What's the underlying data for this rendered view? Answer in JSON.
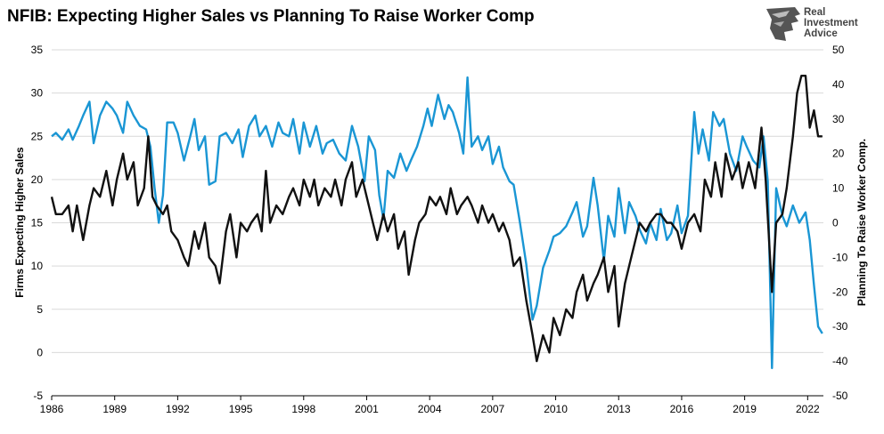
{
  "title": "NFIB: Expecting Higher Sales vs Planning To Raise Worker Comp",
  "logo": {
    "icon": "eagle-head-icon",
    "lines": [
      "Real",
      "Investment",
      "Advice"
    ]
  },
  "chart_data": {
    "type": "line",
    "title": "NFIB: Expecting Higher Sales vs Planning To Raise Worker Comp",
    "xlabel": "",
    "ylabel": "Firms Expecting Higher Sales",
    "y2label": "Planning To Raise Worker Comp.",
    "xlim": [
      1986,
      2022.75
    ],
    "ylim": [
      -5,
      35
    ],
    "y2lim": [
      -50,
      50
    ],
    "x_ticks": [
      "1986",
      "1989",
      "1992",
      "1995",
      "1998",
      "2001",
      "2004",
      "2007",
      "2010",
      "2013",
      "2016",
      "2019",
      "2022"
    ],
    "y_ticks": [
      "35",
      "30",
      "25",
      "20",
      "15",
      "10",
      "5",
      "0",
      "-5"
    ],
    "y2_ticks": [
      "50",
      "40",
      "30",
      "20",
      "10",
      "0",
      "-10",
      "-20",
      "-30",
      "-40",
      "-50"
    ],
    "grid": "horizontal",
    "series": [
      {
        "color": "#111111",
        "axis": "left",
        "points": [
          [
            1986.0,
            18
          ],
          [
            1986.2,
            16
          ],
          [
            1986.5,
            16
          ],
          [
            1986.8,
            17
          ],
          [
            1987.0,
            14
          ],
          [
            1987.2,
            17
          ],
          [
            1987.5,
            13
          ],
          [
            1987.8,
            17
          ],
          [
            1988.0,
            19
          ],
          [
            1988.3,
            18
          ],
          [
            1988.6,
            21
          ],
          [
            1988.9,
            17
          ],
          [
            1989.1,
            20
          ],
          [
            1989.4,
            23
          ],
          [
            1989.6,
            20
          ],
          [
            1989.9,
            22
          ],
          [
            1990.1,
            17
          ],
          [
            1990.4,
            19
          ],
          [
            1990.6,
            25
          ],
          [
            1990.8,
            18
          ],
          [
            1991.0,
            17
          ],
          [
            1991.3,
            16
          ],
          [
            1991.5,
            17
          ],
          [
            1991.7,
            14
          ],
          [
            1992.0,
            13
          ],
          [
            1992.3,
            11
          ],
          [
            1992.5,
            10
          ],
          [
            1992.8,
            14
          ],
          [
            1993.0,
            12
          ],
          [
            1993.3,
            15
          ],
          [
            1993.5,
            11
          ],
          [
            1993.8,
            10
          ],
          [
            1994.0,
            8
          ],
          [
            1994.3,
            14
          ],
          [
            1994.5,
            16
          ],
          [
            1994.8,
            11
          ],
          [
            1995.0,
            15
          ],
          [
            1995.3,
            14
          ],
          [
            1995.5,
            15
          ],
          [
            1995.8,
            16
          ],
          [
            1996.0,
            14
          ],
          [
            1996.2,
            21
          ],
          [
            1996.4,
            15
          ],
          [
            1996.7,
            17
          ],
          [
            1997.0,
            16
          ],
          [
            1997.3,
            18
          ],
          [
            1997.5,
            19
          ],
          [
            1997.8,
            17
          ],
          [
            1998.0,
            20
          ],
          [
            1998.3,
            18
          ],
          [
            1998.5,
            20
          ],
          [
            1998.7,
            17
          ],
          [
            1999.0,
            19
          ],
          [
            1999.3,
            18
          ],
          [
            1999.5,
            20
          ],
          [
            1999.8,
            17
          ],
          [
            2000.0,
            20
          ],
          [
            2000.3,
            22
          ],
          [
            2000.5,
            18
          ],
          [
            2000.8,
            20
          ],
          [
            2001.0,
            18
          ],
          [
            2001.3,
            15
          ],
          [
            2001.5,
            13
          ],
          [
            2001.8,
            16
          ],
          [
            2002.0,
            14
          ],
          [
            2002.3,
            16
          ],
          [
            2002.5,
            12
          ],
          [
            2002.8,
            14
          ],
          [
            2003.0,
            9
          ],
          [
            2003.3,
            13
          ],
          [
            2003.5,
            15
          ],
          [
            2003.8,
            16
          ],
          [
            2004.0,
            18
          ],
          [
            2004.3,
            17
          ],
          [
            2004.5,
            18
          ],
          [
            2004.8,
            16
          ],
          [
            2005.0,
            19
          ],
          [
            2005.3,
            16
          ],
          [
            2005.5,
            17
          ],
          [
            2005.8,
            18
          ],
          [
            2006.0,
            17
          ],
          [
            2006.3,
            15
          ],
          [
            2006.5,
            17
          ],
          [
            2006.8,
            15
          ],
          [
            2007.0,
            16
          ],
          [
            2007.3,
            14
          ],
          [
            2007.5,
            15
          ],
          [
            2007.8,
            13
          ],
          [
            2008.0,
            10
          ],
          [
            2008.3,
            11
          ],
          [
            2008.6,
            6
          ],
          [
            2008.9,
            2
          ],
          [
            2009.1,
            -1
          ],
          [
            2009.4,
            2
          ],
          [
            2009.7,
            0
          ],
          [
            2009.9,
            4
          ],
          [
            2010.2,
            2
          ],
          [
            2010.5,
            5
          ],
          [
            2010.8,
            4
          ],
          [
            2011.0,
            7
          ],
          [
            2011.3,
            9
          ],
          [
            2011.5,
            6
          ],
          [
            2011.8,
            8
          ],
          [
            2012.0,
            9
          ],
          [
            2012.3,
            11
          ],
          [
            2012.5,
            7
          ],
          [
            2012.8,
            10
          ],
          [
            2013.0,
            3
          ],
          [
            2013.3,
            8
          ],
          [
            2013.5,
            10
          ],
          [
            2013.8,
            13
          ],
          [
            2014.0,
            15
          ],
          [
            2014.3,
            14
          ],
          [
            2014.5,
            15
          ],
          [
            2014.8,
            16
          ],
          [
            2015.0,
            16
          ],
          [
            2015.3,
            15
          ],
          [
            2015.5,
            15
          ],
          [
            2015.8,
            14
          ],
          [
            2016.0,
            12
          ],
          [
            2016.3,
            15
          ],
          [
            2016.6,
            16
          ],
          [
            2016.9,
            14
          ],
          [
            2017.1,
            20
          ],
          [
            2017.4,
            18
          ],
          [
            2017.6,
            22
          ],
          [
            2017.9,
            18
          ],
          [
            2018.1,
            23
          ],
          [
            2018.4,
            20
          ],
          [
            2018.7,
            22
          ],
          [
            2018.9,
            19
          ],
          [
            2019.2,
            22
          ],
          [
            2019.5,
            19
          ],
          [
            2019.8,
            26
          ],
          [
            2020.0,
            20
          ],
          [
            2020.3,
            7
          ],
          [
            2020.5,
            15
          ],
          [
            2020.8,
            16
          ],
          [
            2021.0,
            19
          ],
          [
            2021.3,
            25
          ],
          [
            2021.5,
            30
          ],
          [
            2021.7,
            32
          ],
          [
            2021.9,
            32
          ],
          [
            2022.1,
            26
          ],
          [
            2022.3,
            28
          ],
          [
            2022.5,
            25
          ],
          [
            2022.7,
            25
          ]
        ]
      },
      {
        "color": "#1a96d4",
        "axis": "right",
        "points": [
          [
            1986.0,
            25
          ],
          [
            1986.2,
            26
          ],
          [
            1986.5,
            24
          ],
          [
            1986.8,
            27
          ],
          [
            1987.0,
            24
          ],
          [
            1987.3,
            28
          ],
          [
            1987.5,
            31
          ],
          [
            1987.8,
            35
          ],
          [
            1988.0,
            23
          ],
          [
            1988.3,
            31
          ],
          [
            1988.6,
            35
          ],
          [
            1988.9,
            33
          ],
          [
            1989.1,
            31
          ],
          [
            1989.4,
            26
          ],
          [
            1989.6,
            35
          ],
          [
            1989.9,
            31
          ],
          [
            1990.2,
            28
          ],
          [
            1990.5,
            27
          ],
          [
            1990.7,
            22
          ],
          [
            1990.9,
            10
          ],
          [
            1991.1,
            0
          ],
          [
            1991.3,
            8
          ],
          [
            1991.5,
            29
          ],
          [
            1991.8,
            29
          ],
          [
            1992.0,
            26
          ],
          [
            1992.3,
            18
          ],
          [
            1992.6,
            25
          ],
          [
            1992.8,
            30
          ],
          [
            1993.0,
            21
          ],
          [
            1993.3,
            25
          ],
          [
            1993.5,
            11
          ],
          [
            1993.8,
            12
          ],
          [
            1994.0,
            25
          ],
          [
            1994.3,
            26
          ],
          [
            1994.6,
            23
          ],
          [
            1994.9,
            27
          ],
          [
            1995.1,
            19
          ],
          [
            1995.4,
            28
          ],
          [
            1995.7,
            31
          ],
          [
            1995.9,
            25
          ],
          [
            1996.2,
            28
          ],
          [
            1996.5,
            22
          ],
          [
            1996.8,
            29
          ],
          [
            1997.0,
            26
          ],
          [
            1997.3,
            25
          ],
          [
            1997.5,
            30
          ],
          [
            1997.8,
            20
          ],
          [
            1998.0,
            29
          ],
          [
            1998.3,
            22
          ],
          [
            1998.6,
            28
          ],
          [
            1998.9,
            20
          ],
          [
            1999.1,
            23
          ],
          [
            1999.4,
            24
          ],
          [
            1999.7,
            20
          ],
          [
            2000.0,
            18
          ],
          [
            2000.3,
            28
          ],
          [
            2000.6,
            22
          ],
          [
            2000.9,
            12
          ],
          [
            2001.1,
            25
          ],
          [
            2001.4,
            21
          ],
          [
            2001.6,
            8
          ],
          [
            2001.8,
            1
          ],
          [
            2002.0,
            15
          ],
          [
            2002.3,
            13
          ],
          [
            2002.6,
            20
          ],
          [
            2002.9,
            15
          ],
          [
            2003.1,
            18
          ],
          [
            2003.4,
            22
          ],
          [
            2003.7,
            28
          ],
          [
            2003.9,
            33
          ],
          [
            2004.1,
            28
          ],
          [
            2004.4,
            37
          ],
          [
            2004.7,
            30
          ],
          [
            2004.9,
            34
          ],
          [
            2005.1,
            32
          ],
          [
            2005.4,
            26
          ],
          [
            2005.6,
            20
          ],
          [
            2005.8,
            42
          ],
          [
            2006.0,
            22
          ],
          [
            2006.3,
            25
          ],
          [
            2006.5,
            21
          ],
          [
            2006.8,
            25
          ],
          [
            2007.0,
            17
          ],
          [
            2007.3,
            22
          ],
          [
            2007.5,
            16
          ],
          [
            2007.8,
            12
          ],
          [
            2008.0,
            11
          ],
          [
            2008.3,
            0
          ],
          [
            2008.6,
            -12
          ],
          [
            2008.9,
            -28
          ],
          [
            2009.1,
            -24
          ],
          [
            2009.4,
            -13
          ],
          [
            2009.7,
            -8
          ],
          [
            2009.9,
            -4
          ],
          [
            2010.2,
            -3
          ],
          [
            2010.5,
            -1
          ],
          [
            2010.8,
            3
          ],
          [
            2011.0,
            6
          ],
          [
            2011.3,
            -4
          ],
          [
            2011.5,
            -1
          ],
          [
            2011.8,
            13
          ],
          [
            2012.0,
            5
          ],
          [
            2012.3,
            -11
          ],
          [
            2012.5,
            2
          ],
          [
            2012.8,
            -4
          ],
          [
            2013.0,
            10
          ],
          [
            2013.3,
            -3
          ],
          [
            2013.5,
            6
          ],
          [
            2013.8,
            2
          ],
          [
            2014.0,
            -2
          ],
          [
            2014.3,
            -6
          ],
          [
            2014.5,
            0
          ],
          [
            2014.8,
            -5
          ],
          [
            2015.0,
            4
          ],
          [
            2015.3,
            -5
          ],
          [
            2015.5,
            -3
          ],
          [
            2015.8,
            5
          ],
          [
            2016.0,
            -3
          ],
          [
            2016.3,
            2
          ],
          [
            2016.6,
            32
          ],
          [
            2016.8,
            20
          ],
          [
            2017.0,
            27
          ],
          [
            2017.3,
            18
          ],
          [
            2017.5,
            32
          ],
          [
            2017.8,
            28
          ],
          [
            2018.0,
            30
          ],
          [
            2018.3,
            20
          ],
          [
            2018.6,
            15
          ],
          [
            2018.9,
            25
          ],
          [
            2019.1,
            22
          ],
          [
            2019.4,
            18
          ],
          [
            2019.7,
            16
          ],
          [
            2019.9,
            25
          ],
          [
            2020.1,
            12
          ],
          [
            2020.3,
            -42
          ],
          [
            2020.5,
            10
          ],
          [
            2020.8,
            2
          ],
          [
            2021.0,
            -1
          ],
          [
            2021.3,
            5
          ],
          [
            2021.6,
            0
          ],
          [
            2021.9,
            3
          ],
          [
            2022.1,
            -5
          ],
          [
            2022.3,
            -18
          ],
          [
            2022.5,
            -30
          ],
          [
            2022.7,
            -32
          ]
        ]
      }
    ]
  }
}
